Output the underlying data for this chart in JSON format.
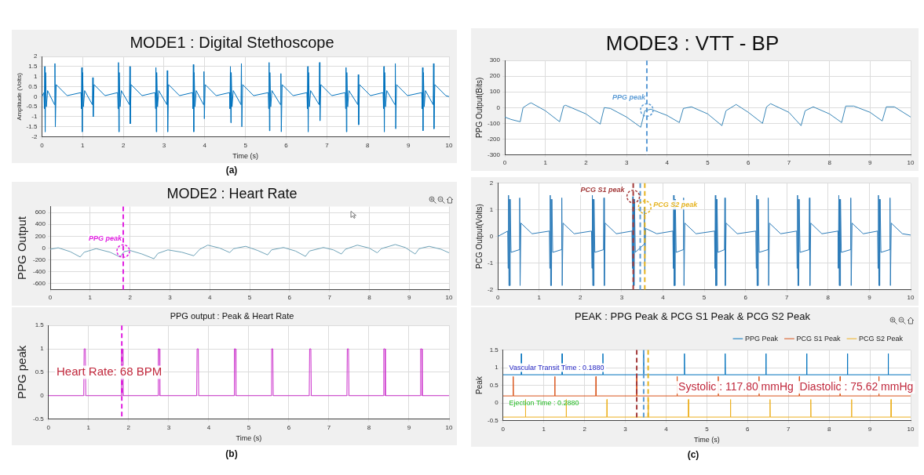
{
  "chart_data": [
    {
      "type": "line",
      "title": "MODE1 : Digital Stethoscope",
      "xlabel": "Time (s)",
      "ylabel": "Amplitude (Volts)",
      "xlim": [
        0,
        10
      ],
      "xticks": [
        0,
        1,
        2,
        3,
        4,
        5,
        6,
        7,
        8,
        9,
        10
      ],
      "ylim": [
        -2,
        2
      ],
      "yticks": [
        -2,
        -1.5,
        -1,
        -0.5,
        0,
        0.5,
        1,
        1.5,
        2
      ],
      "grid": true,
      "series": [
        {
          "color": "#0072bd",
          "x": [
            0,
            0.05,
            0.06,
            0.07,
            0.08,
            0.09,
            0.11,
            0.14,
            0.31,
            0.32,
            0.33,
            0.35,
            0.62,
            0.96,
            0.97,
            0.98,
            0.99,
            1.0,
            1.02,
            1.05,
            1.24,
            1.25,
            1.26,
            1.28,
            1.55,
            1.86,
            1.87,
            1.88,
            1.89,
            1.9,
            1.92,
            1.95,
            2.15,
            2.16,
            2.17,
            2.19,
            2.46,
            2.78,
            2.79,
            2.8,
            2.81,
            2.82,
            2.84,
            2.87,
            3.07,
            3.08,
            3.09,
            3.11,
            3.38,
            3.7,
            3.71,
            3.72,
            3.73,
            3.74,
            3.76,
            3.79,
            3.97,
            3.98,
            3.99,
            4.01,
            4.28,
            4.61,
            4.62,
            4.63,
            4.64,
            4.65,
            4.67,
            4.7,
            4.89,
            4.9,
            4.91,
            4.93,
            5.2,
            5.56,
            5.57,
            5.58,
            5.59,
            5.6,
            5.62,
            5.65,
            5.86,
            5.87,
            5.88,
            5.9,
            6.17,
            6.51,
            6.52,
            6.53,
            6.54,
            6.55,
            6.57,
            6.6,
            6.81,
            6.82,
            6.83,
            6.85,
            7.12,
            7.45,
            7.46,
            7.47,
            7.48,
            7.49,
            7.51,
            7.54,
            7.76,
            7.77,
            7.78,
            7.8,
            8.07,
            8.38,
            8.39,
            8.4,
            8.41,
            8.42,
            8.44,
            8.47,
            8.67,
            8.68,
            8.69,
            8.71,
            8.98,
            9.33,
            9.34,
            9.35,
            9.36,
            9.37,
            9.39,
            9.42,
            9.61,
            9.62,
            9.63,
            9.65,
            9.92,
            10
          ],
          "values": [
            0,
            0.2,
            -0.6,
            1.5,
            -1.75,
            1.2,
            -0.5,
            0.3,
            -0.4,
            1.65,
            -1.5,
            0.6,
            0.05,
            0.2,
            -0.6,
            1.45,
            -1.75,
            1.2,
            -0.5,
            0.3,
            -0.4,
            0.95,
            -1,
            0.6,
            0.05,
            0.2,
            -0.6,
            1.7,
            -1.75,
            1.2,
            -0.5,
            0.3,
            -0.4,
            1.5,
            -1.35,
            0.6,
            0.05,
            0.2,
            -0.6,
            1.45,
            -1.75,
            1.2,
            -0.5,
            0.3,
            -0.4,
            1.3,
            -1.75,
            0.6,
            0.05,
            0.2,
            -0.6,
            1.6,
            -1.75,
            1.2,
            -0.5,
            0.3,
            -0.4,
            1.25,
            -1.1,
            0.6,
            0.05,
            0.2,
            -0.6,
            1.5,
            -1.3,
            1.2,
            -0.5,
            0.3,
            -0.4,
            1.65,
            -1.5,
            0.6,
            0.05,
            0.2,
            -0.6,
            1.7,
            -1.7,
            1.2,
            -0.5,
            0.3,
            -0.4,
            1.15,
            -1.75,
            0.6,
            0.05,
            0.2,
            -0.6,
            1.5,
            -1.75,
            1.2,
            -0.5,
            0.3,
            -0.4,
            1.7,
            -1.2,
            0.6,
            0.05,
            0.2,
            -0.6,
            1.45,
            -1.75,
            1.2,
            -0.5,
            0.3,
            -0.4,
            1.1,
            -1.4,
            0.6,
            0.05,
            0.2,
            -0.6,
            1.5,
            -1.75,
            1.2,
            -0.5,
            0.3,
            -0.4,
            1.65,
            -1.6,
            0.6,
            0.05,
            0.2,
            -0.6,
            1.45,
            -1.7,
            1.2,
            -0.5,
            0.3,
            -0.4,
            1.65,
            -1.6,
            0.6,
            0.05,
            0
          ]
        }
      ],
      "annotations": [
        "(a)"
      ]
    },
    {
      "type": "line",
      "title": "MODE2 : Heart Rate",
      "ylabel": "PPG Output",
      "xlim": [
        0,
        10
      ],
      "xticks": [
        0,
        1,
        2,
        3,
        4,
        5,
        6,
        7,
        8,
        9,
        10
      ],
      "ylim": [
        -700,
        700
      ],
      "yticks": [
        -600,
        -400,
        -200,
        0,
        200,
        400,
        600
      ],
      "grid": true,
      "series": [
        {
          "color": "#6fa3b8",
          "x": [
            0,
            0.2,
            0.5,
            0.75,
            0.85,
            1.15,
            1.5,
            1.75,
            1.85,
            2.0,
            2.3,
            2.6,
            2.7,
            2.95,
            3.3,
            3.6,
            3.75,
            3.95,
            4.25,
            4.5,
            4.6,
            4.9,
            5.2,
            5.45,
            5.55,
            5.85,
            6.15,
            6.4,
            6.5,
            6.85,
            7.1,
            7.3,
            7.4,
            7.7,
            8.0,
            8.2,
            8.3,
            8.65,
            8.9,
            9.15,
            9.25,
            9.5,
            9.8,
            10
          ],
          "values": [
            -20,
            5,
            -60,
            -150,
            -70,
            -10,
            -70,
            -150,
            -60,
            -40,
            -100,
            -180,
            -90,
            -30,
            -70,
            -130,
            -20,
            50,
            0,
            -75,
            -10,
            30,
            -40,
            -115,
            -30,
            10,
            -50,
            -140,
            -50,
            10,
            -30,
            -100,
            -20,
            50,
            0,
            -80,
            -10,
            60,
            10,
            -100,
            -10,
            30,
            -20,
            -80
          ]
        }
      ],
      "annotations": [
        {
          "text": "PPG peak",
          "x": 1.83,
          "y": -50
        }
      ],
      "ref_lines": [
        {
          "axis": "x",
          "value": 1.83,
          "color": "#e020e0",
          "line_style": "dashed"
        }
      ]
    },
    {
      "type": "line",
      "title": "PPG output : Peak & Heart Rate",
      "xlabel": "Time (s)",
      "ylabel": "PPG peak",
      "xlim": [
        0,
        10
      ],
      "xticks": [
        0,
        1,
        2,
        3,
        4,
        5,
        6,
        7,
        8,
        9,
        10
      ],
      "ylim": [
        -0.5,
        1.5
      ],
      "yticks": [
        -0.5,
        0,
        0.5,
        1,
        1.5
      ],
      "grid": true,
      "series": [
        {
          "color": "#cc33cc",
          "x": [
            0,
            0.88,
            0.89,
            0.92,
            0.93,
            1.81,
            1.82,
            1.85,
            1.86,
            2.73,
            2.74,
            2.77,
            2.78,
            3.7,
            3.71,
            3.74,
            3.75,
            4.63,
            4.64,
            4.67,
            4.68,
            5.56,
            5.57,
            5.6,
            5.61,
            6.51,
            6.52,
            6.55,
            6.56,
            7.45,
            7.46,
            7.49,
            7.5,
            8.36,
            8.37,
            8.4,
            8.41,
            9.28,
            9.29,
            9.32,
            9.33,
            10
          ],
          "values": [
            0,
            0,
            1,
            1,
            0,
            0,
            1,
            1,
            0,
            0,
            1,
            1,
            0,
            0,
            1,
            1,
            0,
            0,
            1,
            1,
            0,
            0,
            1,
            1,
            0,
            0,
            1,
            1,
            0,
            0,
            1,
            1,
            0,
            0,
            1,
            1,
            0,
            0,
            1,
            1,
            0,
            0
          ]
        }
      ],
      "annotations": [
        "Heart Rate: 68 BPM",
        "(b)"
      ],
      "ref_lines": [
        {
          "axis": "x",
          "value": 1.83,
          "color": "#e020e0",
          "line_style": "dashed"
        }
      ]
    },
    {
      "type": "line",
      "title": "MODE3 : VTT - BP",
      "ylabel": "PPG Output(Bits)",
      "xlim": [
        0,
        10
      ],
      "xticks": [
        0,
        1,
        2,
        3,
        4,
        5,
        6,
        7,
        8,
        9,
        10
      ],
      "ylim": [
        -300,
        300
      ],
      "yticks": [
        -300,
        -200,
        -100,
        0,
        100,
        200,
        300
      ],
      "grid": true,
      "series": [
        {
          "color": "#3a87b8",
          "x": [
            0,
            0.15,
            0.38,
            0.45,
            0.6,
            0.65,
            1.0,
            1.35,
            1.45,
            1.5,
            2.0,
            2.35,
            2.45,
            2.6,
            3.0,
            3.35,
            3.45,
            3.6,
            4.0,
            4.3,
            4.4,
            4.6,
            5.0,
            5.35,
            5.45,
            5.7,
            6.0,
            6.35,
            6.45,
            6.55,
            7.0,
            7.3,
            7.4,
            7.6,
            8.0,
            8.3,
            8.4,
            8.6,
            9.0,
            9.3,
            9.4,
            9.6,
            10
          ],
          "values": [
            -60,
            -75,
            -90,
            0,
            25,
            30,
            -20,
            -90,
            10,
            15,
            -40,
            -105,
            0,
            -5,
            -60,
            -125,
            -20,
            -10,
            -50,
            -95,
            -5,
            5,
            -40,
            -115,
            -20,
            20,
            -30,
            -100,
            5,
            25,
            -30,
            -115,
            -20,
            5,
            -40,
            -95,
            10,
            10,
            -30,
            -85,
            5,
            5,
            -60
          ]
        }
      ],
      "annotations": [
        {
          "text": "PPG peak",
          "x": 3.5,
          "y": -15
        }
      ],
      "ref_lines": [
        {
          "axis": "x",
          "value": 3.5,
          "color": "#5b9bd5",
          "line_style": "dashed"
        }
      ]
    },
    {
      "type": "line",
      "ylabel": "PCG Output(Volts)",
      "xlim": [
        0,
        10
      ],
      "xticks": [
        0,
        1,
        2,
        3,
        4,
        5,
        6,
        7,
        8,
        9,
        10
      ],
      "ylim": [
        -2,
        2
      ],
      "yticks": [
        -2,
        -1,
        0,
        1,
        2
      ],
      "grid": true,
      "series": [
        {
          "color": "#2a7ab8",
          "x": [
            0,
            0.24,
            0.25,
            0.26,
            0.27,
            0.28,
            0.29,
            0.3,
            0.32,
            0.52,
            0.53,
            0.54,
            0.56,
            0.83,
            1.25,
            1.26,
            1.27,
            1.28,
            1.29,
            1.3,
            1.31,
            1.33,
            1.54,
            1.55,
            1.56,
            1.58,
            1.85,
            2.27,
            2.28,
            2.29,
            2.3,
            2.31,
            2.32,
            2.33,
            2.35,
            2.56,
            2.57,
            2.58,
            2.6,
            2.87,
            3.25,
            3.26,
            3.27,
            3.28,
            3.29,
            3.3,
            3.31,
            3.33,
            3.54,
            3.55,
            3.56,
            3.58,
            3.85,
            4.24,
            4.25,
            4.26,
            4.27,
            4.28,
            4.29,
            4.3,
            4.32,
            4.49,
            4.5,
            4.51,
            4.53,
            4.8,
            5.25,
            5.26,
            5.27,
            5.28,
            5.29,
            5.3,
            5.31,
            5.33,
            5.49,
            5.5,
            5.51,
            5.53,
            5.8,
            6.25,
            6.26,
            6.27,
            6.28,
            6.29,
            6.3,
            6.31,
            6.33,
            6.54,
            6.55,
            6.56,
            6.58,
            6.85,
            7.24,
            7.25,
            7.26,
            7.27,
            7.28,
            7.29,
            7.3,
            7.32,
            7.54,
            7.55,
            7.56,
            7.58,
            7.85,
            8.24,
            8.25,
            8.26,
            8.27,
            8.28,
            8.29,
            8.3,
            8.32,
            8.54,
            8.55,
            8.56,
            8.58,
            8.85,
            9.2,
            9.21,
            9.22,
            9.23,
            9.24,
            9.25,
            9.26,
            9.28,
            9.49,
            9.5,
            9.51,
            9.53,
            9.8,
            10
          ],
          "values": [
            0,
            0.2,
            -1.2,
            1.55,
            -1.85,
            1.4,
            -1.85,
            1.4,
            -0.6,
            -0.5,
            1.45,
            -1.85,
            0.5,
            0.1,
            0.2,
            -1.2,
            1.55,
            -1.85,
            1.4,
            -1.85,
            1.4,
            -0.6,
            -0.5,
            1.45,
            -1.85,
            0.5,
            0.1,
            0.2,
            -1.2,
            1.55,
            -1.85,
            1.4,
            -1.85,
            1.4,
            -0.6,
            -0.5,
            1.45,
            -1.85,
            0.5,
            0.1,
            0.2,
            -1.2,
            1.5,
            -1.85,
            1.4,
            -1.85,
            1.4,
            -0.6,
            -0.3,
            1.1,
            -1.3,
            0.3,
            0.1,
            0.2,
            -1.2,
            1.55,
            -1.85,
            1.4,
            -1.85,
            1.4,
            -0.6,
            -0.5,
            1.45,
            -1.85,
            0.5,
            0.1,
            0.2,
            -1.2,
            1.55,
            -1.85,
            1.4,
            -1.85,
            1.4,
            -0.6,
            -0.5,
            1.45,
            -1.85,
            0.5,
            0.1,
            0.2,
            -1.2,
            1.55,
            -1.85,
            1.4,
            -1.85,
            1.4,
            -0.6,
            -0.5,
            1.45,
            -1.85,
            0.5,
            0.1,
            0.2,
            -1.2,
            1.55,
            -1.85,
            1.4,
            -1.85,
            1.4,
            -0.6,
            -0.5,
            1.45,
            -1.85,
            0.5,
            0.1,
            0.2,
            -1.2,
            1.55,
            -1.85,
            1.4,
            -1.85,
            1.4,
            -0.6,
            -0.5,
            1.45,
            -1.85,
            0.5,
            0.1,
            0.2,
            -1.2,
            1.55,
            -1.85,
            1.4,
            -1.85,
            1.4,
            -0.6,
            -0.5,
            1.45,
            -1.85,
            0.5,
            0.1,
            0.05
          ]
        }
      ],
      "annotations": [
        {
          "text": "PCG S1 peak",
          "x": 3.28,
          "y": 1.5
        },
        {
          "text": "PCG S2 peak",
          "x": 3.56,
          "y": 1.1
        }
      ],
      "ref_lines": [
        {
          "axis": "x",
          "value": 3.28,
          "color": "#a33a3a",
          "line_style": "dashed"
        },
        {
          "axis": "x",
          "value": 3.45,
          "color": "#5b9bd5",
          "line_style": "dashed"
        },
        {
          "axis": "x",
          "value": 3.56,
          "color": "#e6b422",
          "line_style": "dashed"
        }
      ]
    },
    {
      "type": "line",
      "title": "PEAK : PPG Peak & PCG S1 Peak & PCG S2 Peak",
      "xlabel": "Time (s)",
      "ylabel": "Peak",
      "xlim": [
        0,
        10
      ],
      "xticks": [
        0,
        1,
        2,
        3,
        4,
        5,
        6,
        7,
        8,
        9,
        10
      ],
      "ylim": [
        -0.5,
        1.5
      ],
      "yticks": [
        -0.5,
        0,
        0.5,
        1,
        1.5
      ],
      "grid": true,
      "legend": "top right",
      "series": [
        {
          "name": "PPG Peak",
          "color": "#0072bd",
          "x": [
            0,
            0.445,
            0.45,
            0.455,
            1.445,
            1.45,
            1.455,
            2.445,
            2.45,
            2.455,
            3.445,
            3.45,
            3.455,
            4.445,
            4.45,
            4.455,
            5.445,
            5.45,
            5.455,
            6.445,
            6.45,
            6.455,
            7.445,
            7.45,
            7.455,
            8.445,
            8.45,
            8.455,
            9.445,
            9.45,
            9.455,
            10
          ],
          "values": [
            0.8,
            0.8,
            1.4,
            0.8,
            0.8,
            1.4,
            0.8,
            0.8,
            1.4,
            0.8,
            0.8,
            1.4,
            0.8,
            0.8,
            1.4,
            0.8,
            0.8,
            1.4,
            0.8,
            0.8,
            1.4,
            0.8,
            0.8,
            1.4,
            0.8,
            0.8,
            1.4,
            0.8,
            0.8,
            1.4,
            0.8,
            0.8
          ]
        },
        {
          "name": "PCG S1 Peak",
          "color": "#d95319",
          "x": [
            0,
            0.245,
            0.25,
            0.255,
            1.265,
            1.27,
            1.275,
            2.275,
            2.28,
            2.285,
            3.275,
            3.28,
            3.285,
            4.265,
            4.27,
            4.275,
            5.275,
            5.28,
            5.285,
            6.275,
            6.28,
            6.285,
            7.265,
            7.27,
            7.275,
            8.265,
            8.27,
            8.275,
            9.215,
            9.22,
            9.225,
            10
          ],
          "values": [
            0.2,
            0.2,
            0.75,
            0.2,
            0.2,
            0.75,
            0.2,
            0.2,
            0.75,
            0.2,
            0.2,
            0.75,
            0.2,
            0.2,
            0.75,
            0.2,
            0.2,
            0.75,
            0.2,
            0.2,
            0.75,
            0.2,
            0.2,
            0.75,
            0.2,
            0.2,
            0.75,
            0.2,
            0.2,
            0.75,
            0.2,
            0.2
          ]
        },
        {
          "name": "PCG S2 Peak",
          "color": "#edb120",
          "x": [
            0,
            0.545,
            0.55,
            0.555,
            1.545,
            1.55,
            1.555,
            2.545,
            2.55,
            2.555,
            3.555,
            3.56,
            3.565,
            4.545,
            4.55,
            4.555,
            5.575,
            5.58,
            5.585,
            6.545,
            6.55,
            6.555,
            7.545,
            7.55,
            7.555,
            8.545,
            8.55,
            8.555,
            9.515,
            9.52,
            9.525,
            10
          ],
          "values": [
            -0.4,
            -0.4,
            0.1,
            -0.4,
            -0.4,
            0.1,
            -0.4,
            -0.4,
            0.1,
            -0.4,
            -0.4,
            0.1,
            -0.4,
            -0.4,
            0.1,
            -0.4,
            -0.4,
            0.1,
            -0.4,
            -0.4,
            0.1,
            -0.4,
            -0.4,
            0.1,
            -0.4,
            -0.4,
            0.1,
            -0.4,
            -0.4,
            0.1,
            -0.4,
            -0.4
          ]
        }
      ],
      "annotations": [
        "Vascular Transit Time : 0.1880",
        "Ejection Time : 0.2880",
        "Systolic : 117.80 mmHg  Diastolic : 75.62 mmHg",
        "(c)"
      ],
      "ref_lines": [
        {
          "axis": "x",
          "value": 3.28,
          "color": "#a33a3a",
          "line_style": "dashed"
        },
        {
          "axis": "x",
          "value": 3.45,
          "color": "#5b9bd5",
          "line_style": "dashed"
        },
        {
          "axis": "x",
          "value": 3.56,
          "color": "#e6b422",
          "line_style": "dashed"
        }
      ]
    }
  ]
}
